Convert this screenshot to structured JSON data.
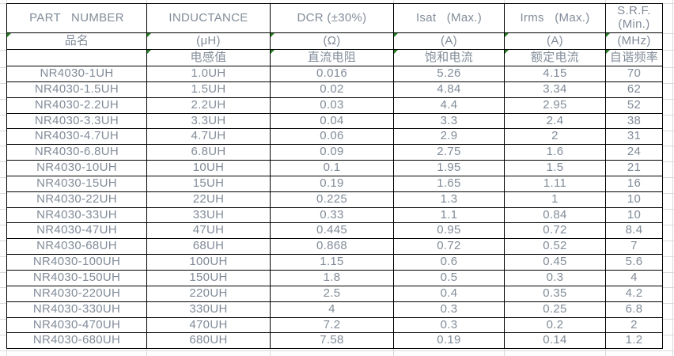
{
  "table": {
    "column_names": [
      "part_number",
      "inductance",
      "dcr",
      "isat_max",
      "irms_max",
      "srf_min"
    ],
    "header_row1": [
      "PART   NUMBER",
      "INDUCTANCE",
      "DCR (±30%)",
      "Isat   (Max.)",
      "Irms   (Max.)",
      "S.R.F.\n(Min.)"
    ],
    "header_row2": [
      "品名",
      "(μH)",
      "(Ω)",
      "(A)",
      "(A)",
      "(MHz)"
    ],
    "header_row3": [
      "",
      "电感值",
      "直流电阻",
      "饱和电流",
      "额定电流",
      "自谐频率"
    ],
    "header_row2_markers": [
      true,
      true,
      true,
      true,
      true,
      true
    ],
    "header_row3_markers": [
      false,
      true,
      true,
      true,
      true,
      true
    ],
    "rows": [
      [
        "NR4030-1UH",
        "1.0UH",
        "0.016",
        "5.26",
        "4.15",
        "70"
      ],
      [
        "NR4030-1.5UH",
        "1.5UH",
        "0.02",
        "4.84",
        "3.34",
        "62"
      ],
      [
        "NR4030-2.2UH",
        "2.2UH",
        "0.03",
        "4.4",
        "2.95",
        "52"
      ],
      [
        "NR4030-3.3UH",
        "3.3UH",
        "0.04",
        "3.3",
        "2.4",
        "38"
      ],
      [
        "NR4030-4.7UH",
        "4.7UH",
        "0.06",
        "2.9",
        "2",
        "31"
      ],
      [
        "NR4030-6.8UH",
        "6.8UH",
        "0.09",
        "2.75",
        "1.6",
        "24"
      ],
      [
        "NR4030-10UH",
        "10UH",
        "0.1",
        "1.95",
        "1.5",
        "21"
      ],
      [
        "NR4030-15UH",
        "15UH",
        "0.19",
        "1.65",
        "1.11",
        "16"
      ],
      [
        "NR4030-22UH",
        "22UH",
        "0.225",
        "1.3",
        "1",
        "10"
      ],
      [
        "NR4030-33UH",
        "33UH",
        "0.33",
        "1.1",
        "0.84",
        "10"
      ],
      [
        "NR4030-47UH",
        "47UH",
        "0.445",
        "0.95",
        "0.72",
        "8.4"
      ],
      [
        "NR4030-68UH",
        "68UH",
        "0.868",
        "0.72",
        "0.52",
        "7"
      ],
      [
        "NR4030-100UH",
        "100UH",
        "1.15",
        "0.6",
        "0.45",
        "5.6"
      ],
      [
        "NR4030-150UH",
        "150UH",
        "1.8",
        "0.5",
        "0.3",
        "4"
      ],
      [
        "NR4030-220UH",
        "220UH",
        "2.5",
        "0.4",
        "0.35",
        "4.2"
      ],
      [
        "NR4030-330UH",
        "330UH",
        "4",
        "0.3",
        "0.25",
        "6.8"
      ],
      [
        "NR4030-470UH",
        "470UH",
        "7.2",
        "0.3",
        "0.2",
        "2"
      ],
      [
        "NR4030-680UH",
        "680UH",
        "7.58",
        "0.19",
        "0.14",
        "1.2"
      ]
    ]
  },
  "colors": {
    "table_border": "#000000",
    "cell_text": "#828c99",
    "sheet_gridline": "#d9d9d9",
    "error_marker_green": "#1e7e1e",
    "background": "#ffffff"
  }
}
